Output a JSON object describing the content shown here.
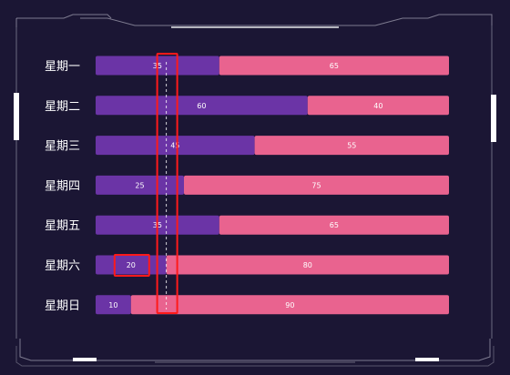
{
  "chart_data": {
    "type": "bar",
    "orientation": "horizontal",
    "stacked": true,
    "percent_stacked": true,
    "categories": [
      "星期一",
      "星期二",
      "星期三",
      "星期四",
      "星期五",
      "星期六",
      "星期日"
    ],
    "series": [
      {
        "values": [
          35,
          60,
          45,
          25,
          35,
          20,
          10
        ],
        "color": "#6b34a6"
      },
      {
        "values": [
          65,
          40,
          55,
          75,
          65,
          80,
          90
        ],
        "color": "#e9638f"
      }
    ],
    "xlim": [
      0,
      100
    ],
    "grid": false,
    "legend": "none",
    "annotations": {
      "dashed_reference_line_value": 20,
      "highlight_boxes": [
        "column at value 20",
        "星期六 value 20"
      ],
      "highlight_color": "#ff1a1a"
    }
  },
  "colors": {
    "background": "#1b1634",
    "frame": "#cfd0dc",
    "label": "#ffffff"
  }
}
